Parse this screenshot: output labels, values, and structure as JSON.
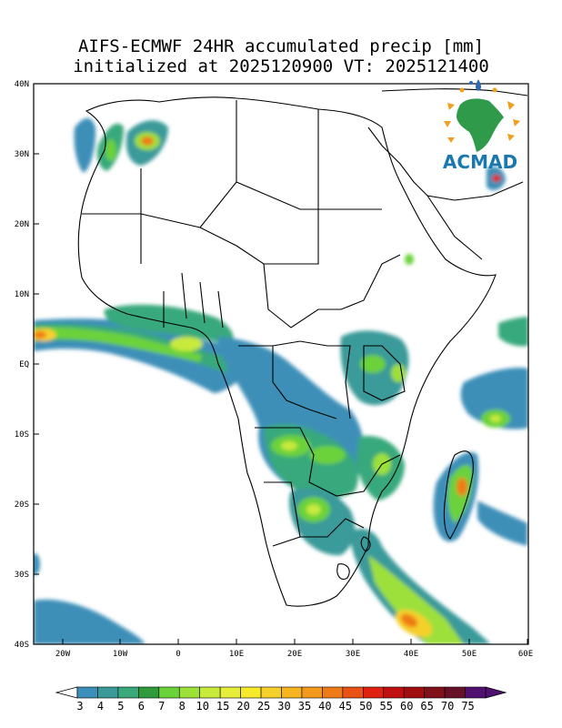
{
  "title": {
    "line1": "AIFS-ECMWF 24HR accumulated precip [mm]",
    "line2": "initialized at 2025120900 VT: 2025121400"
  },
  "lat_labels": [
    "40N",
    "30N",
    "20N",
    "10N",
    "EQ",
    "10S",
    "20S",
    "30S",
    "40S"
  ],
  "lon_labels": [
    "20W",
    "10W",
    "0",
    "10E",
    "20E",
    "30E",
    "40E",
    "50E",
    "60E"
  ],
  "logo": {
    "text": "ACMAD",
    "icon": "acmad-africa-sun-logo"
  },
  "colorbar": {
    "labels": [
      "3",
      "4",
      "5",
      "6",
      "7",
      "8",
      "10",
      "15",
      "20",
      "25",
      "30",
      "35",
      "40",
      "45",
      "50",
      "55",
      "60",
      "65",
      "70",
      "75"
    ],
    "colors": [
      "#3c8fb8",
      "#3a9a9a",
      "#39a97c",
      "#2f9b3e",
      "#6cd23a",
      "#9ee03a",
      "#c8ea3c",
      "#e6ee3a",
      "#f6ea2a",
      "#f6d02a",
      "#f6b420",
      "#f39a1c",
      "#ef7b18",
      "#e85214",
      "#e02010",
      "#c01010",
      "#a00e10",
      "#80101a",
      "#681028",
      "#501070"
    ]
  }
}
